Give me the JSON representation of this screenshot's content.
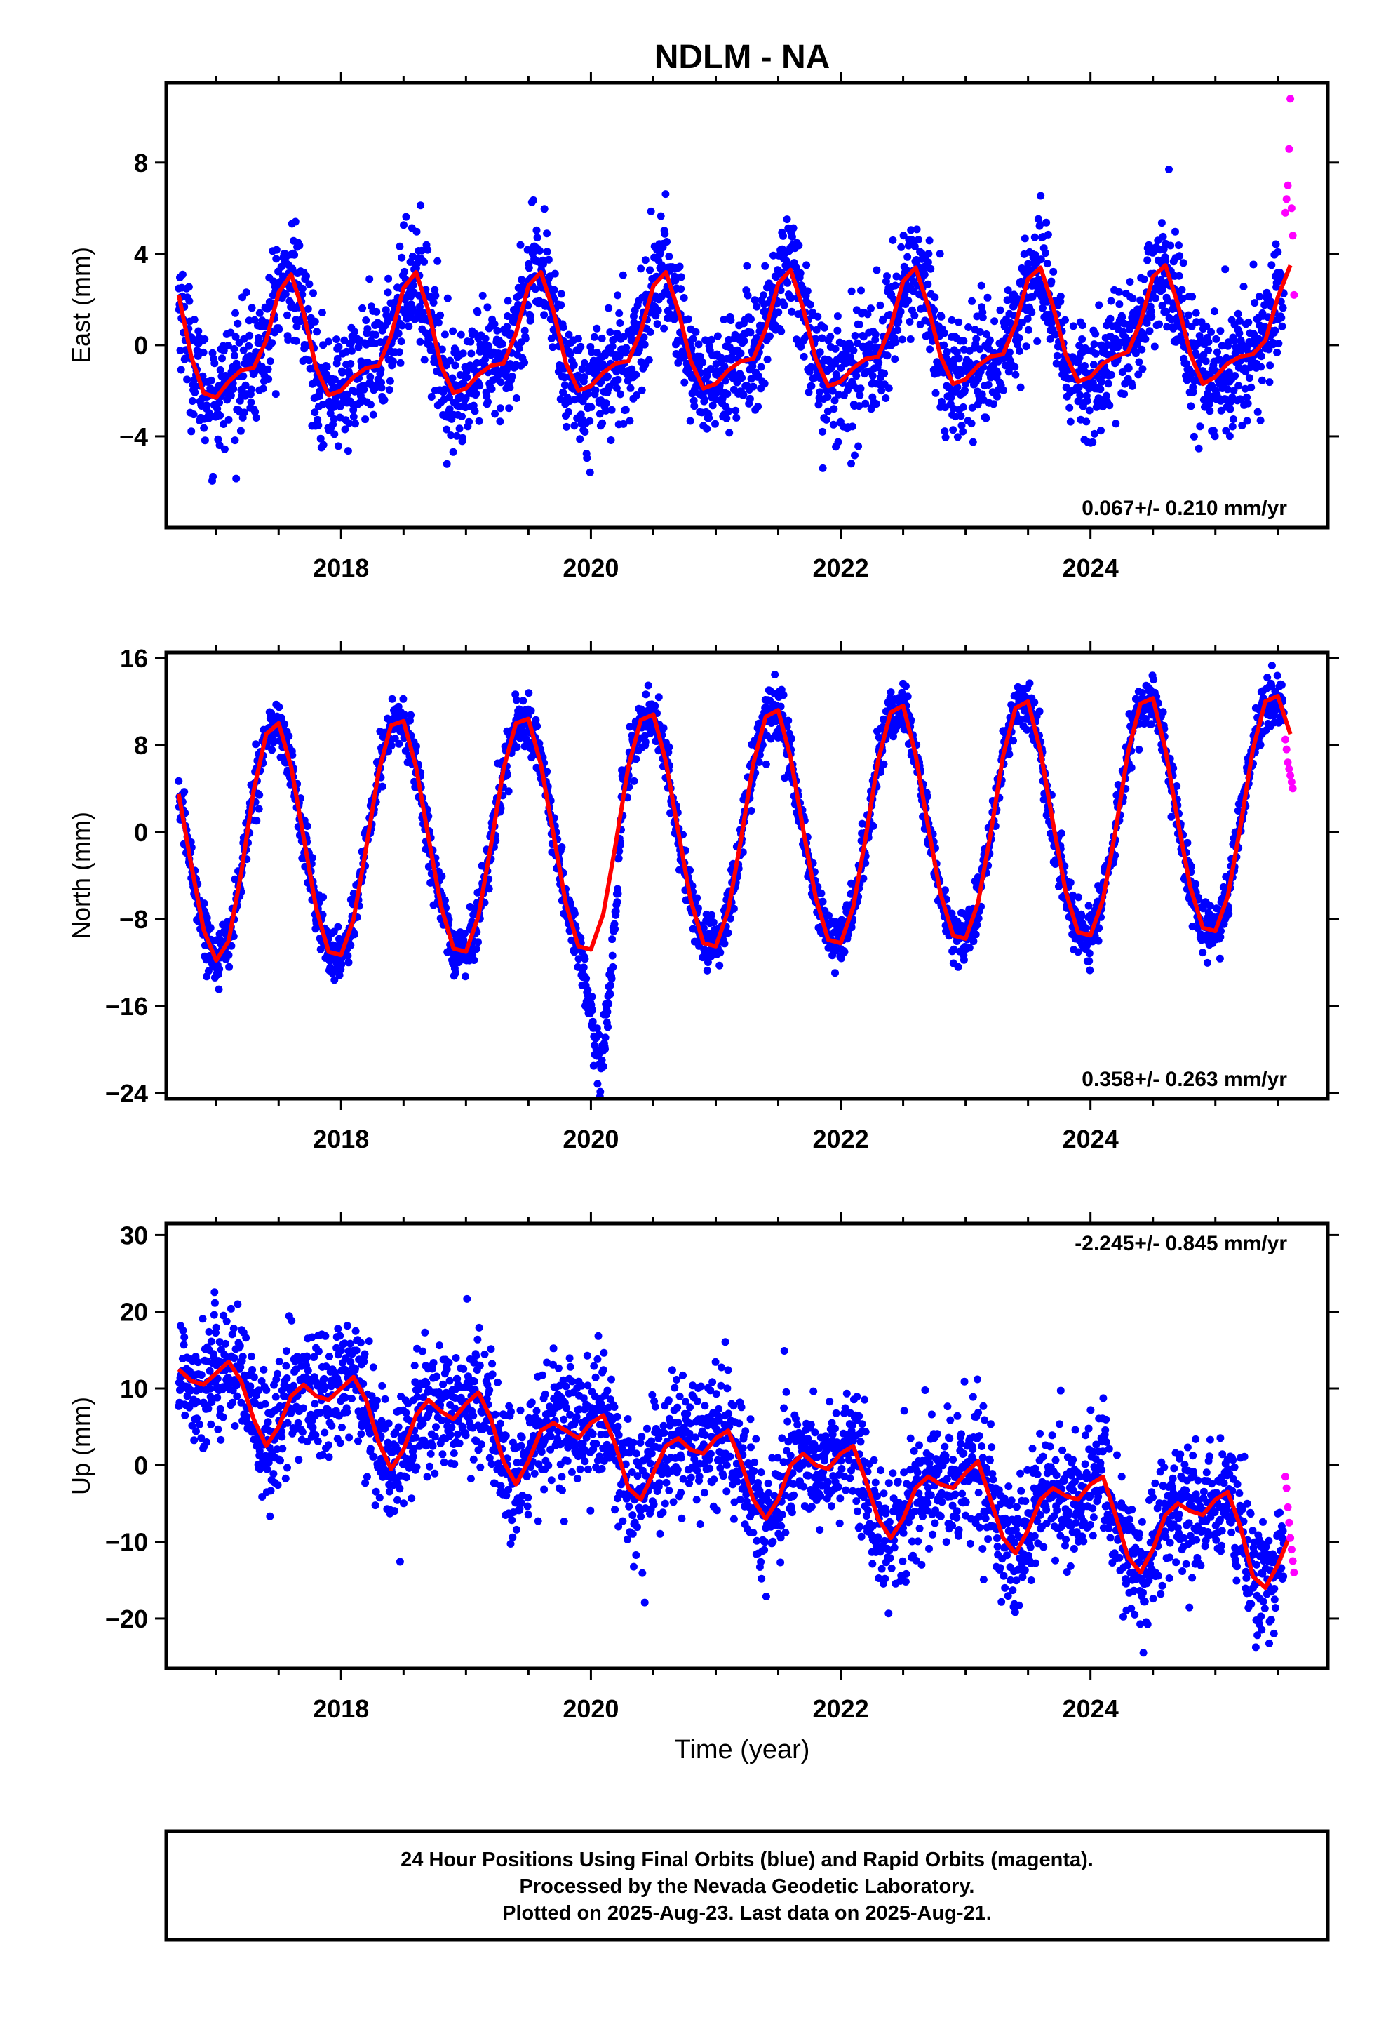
{
  "title": "NDLM - NA",
  "colors": {
    "final": "#0000ff",
    "rapid": "#ff00ff",
    "model": "#ff0000"
  },
  "chart_data": [
    {
      "type": "scatter",
      "ylabel": "East (mm)",
      "xlim": [
        2016.6,
        2025.9
      ],
      "ylim": [
        -8,
        11.5
      ],
      "yticks": [
        -4,
        0,
        4,
        8
      ],
      "xticks": [
        2018,
        2020,
        2022,
        2024
      ],
      "rate": "0.067+/- 0.210 mm/yr",
      "rate_position": "bottom-right",
      "series": [
        {
          "name": "Final Orbits",
          "color": "#0000ff",
          "x_range": [
            2016.7,
            2025.55
          ],
          "mean": 0.0,
          "trend_mm_per_yr": 0.067,
          "annual_amplitude": 2.6,
          "annual_peak": 0.58,
          "semiannual_amplitude": 0.5,
          "scatter_sd": 1.3
        },
        {
          "name": "Rapid Orbits",
          "color": "#ff00ff",
          "x": [
            2025.56,
            2025.57,
            2025.58,
            2025.59,
            2025.6,
            2025.61,
            2025.62,
            2025.63
          ],
          "y": [
            5.8,
            6.4,
            7.0,
            8.6,
            10.8,
            6.0,
            4.8,
            2.2
          ]
        },
        {
          "name": "Model",
          "color": "#ff0000",
          "x": [
            2016.7,
            2016.8,
            2016.9,
            2017.0,
            2017.1,
            2017.2,
            2017.3,
            2017.4,
            2017.5,
            2017.6,
            2017.7,
            2017.8,
            2017.9,
            2018.0,
            2018.1,
            2018.2,
            2018.3,
            2018.4,
            2018.5,
            2018.6,
            2018.7,
            2018.8,
            2018.9,
            2019.0,
            2019.1,
            2019.2,
            2019.3,
            2019.4,
            2019.5,
            2019.6,
            2019.7,
            2019.8,
            2019.9,
            2020.0,
            2020.1,
            2020.2,
            2020.3,
            2020.4,
            2020.5,
            2020.6,
            2020.7,
            2020.8,
            2020.9,
            2021.0,
            2021.1,
            2021.2,
            2021.3,
            2021.4,
            2021.5,
            2021.6,
            2021.7,
            2021.8,
            2021.9,
            2022.0,
            2022.1,
            2022.2,
            2022.3,
            2022.4,
            2022.5,
            2022.6,
            2022.7,
            2022.8,
            2022.9,
            2023.0,
            2023.1,
            2023.2,
            2023.3,
            2023.4,
            2023.5,
            2023.6,
            2023.7,
            2023.8,
            2023.9,
            2024.0,
            2024.1,
            2024.2,
            2024.3,
            2024.4,
            2024.5,
            2024.6,
            2024.7,
            2024.8,
            2024.9,
            2025.0,
            2025.1,
            2025.2,
            2025.3,
            2025.4,
            2025.5,
            2025.6
          ],
          "y": [
            2.2,
            -0.5,
            -2.1,
            -2.3,
            -1.6,
            -1.1,
            -1.0,
            0.2,
            2.3,
            3.1,
            1.4,
            -1.0,
            -2.2,
            -2.0,
            -1.4,
            -1.0,
            -0.9,
            0.4,
            2.5,
            3.2,
            1.5,
            -0.9,
            -2.1,
            -1.9,
            -1.3,
            -0.9,
            -0.8,
            0.5,
            2.6,
            3.2,
            1.5,
            -0.8,
            -2.0,
            -1.8,
            -1.2,
            -0.8,
            -0.7,
            0.6,
            2.6,
            3.2,
            1.5,
            -0.7,
            -1.9,
            -1.7,
            -1.1,
            -0.7,
            -0.6,
            0.7,
            2.7,
            3.3,
            1.6,
            -0.6,
            -1.8,
            -1.6,
            -1.0,
            -0.6,
            -0.5,
            0.8,
            2.8,
            3.4,
            1.7,
            -0.5,
            -1.7,
            -1.5,
            -0.9,
            -0.5,
            -0.4,
            0.9,
            2.9,
            3.4,
            1.7,
            -0.4,
            -1.6,
            -1.4,
            -0.8,
            -0.5,
            -0.3,
            1.0,
            3.0,
            3.5,
            1.8,
            -0.4,
            -1.7,
            -1.4,
            -0.8,
            -0.5,
            -0.4,
            0.2,
            2.1,
            3.5
          ]
        }
      ]
    },
    {
      "type": "scatter",
      "ylabel": "North (mm)",
      "xlim": [
        2016.6,
        2025.9
      ],
      "ylim": [
        -24.5,
        16.5
      ],
      "yticks": [
        -24,
        -16,
        -8,
        0,
        8,
        16
      ],
      "xticks": [
        2018,
        2020,
        2022,
        2024
      ],
      "rate": "0.358+/- 0.263 mm/yr",
      "rate_position": "bottom-right",
      "series": [
        {
          "name": "Final Orbits",
          "color": "#0000ff",
          "x_range": [
            2016.7,
            2025.55
          ],
          "mean": 0.0,
          "trend_mm_per_yr": 0.358,
          "annual_amplitude": 11.0,
          "annual_peak": 0.52,
          "semiannual_amplitude": 0.0,
          "scatter_sd": 1.2,
          "anomaly": {
            "x": [
              2019.9,
              2020.25
            ],
            "min": -24
          }
        },
        {
          "name": "Rapid Orbits",
          "color": "#ff00ff",
          "x": [
            2025.56,
            2025.57,
            2025.58,
            2025.59,
            2025.6,
            2025.61,
            2025.62
          ],
          "y": [
            8.5,
            7.6,
            6.4,
            5.8,
            5.2,
            4.6,
            4.0
          ]
        },
        {
          "name": "Model",
          "color": "#ff0000",
          "x": [
            2016.7,
            2016.8,
            2016.9,
            2017.0,
            2017.1,
            2017.2,
            2017.3,
            2017.4,
            2017.5,
            2017.6,
            2017.7,
            2017.8,
            2017.9,
            2018.0,
            2018.1,
            2018.2,
            2018.3,
            2018.4,
            2018.5,
            2018.6,
            2018.7,
            2018.8,
            2018.9,
            2019.0,
            2019.1,
            2019.2,
            2019.3,
            2019.4,
            2019.5,
            2019.6,
            2019.7,
            2019.8,
            2019.9,
            2020.0,
            2020.1,
            2020.2,
            2020.3,
            2020.4,
            2020.5,
            2020.6,
            2020.7,
            2020.8,
            2020.9,
            2021.0,
            2021.1,
            2021.2,
            2021.3,
            2021.4,
            2021.5,
            2021.6,
            2021.7,
            2021.8,
            2021.9,
            2022.0,
            2022.1,
            2022.2,
            2022.3,
            2022.4,
            2022.5,
            2022.6,
            2022.7,
            2022.8,
            2022.9,
            2023.0,
            2023.1,
            2023.2,
            2023.3,
            2023.4,
            2023.5,
            2023.6,
            2023.7,
            2023.8,
            2023.9,
            2024.0,
            2024.1,
            2024.2,
            2024.3,
            2024.4,
            2024.5,
            2024.6,
            2024.7,
            2024.8,
            2024.9,
            2025.0,
            2025.1,
            2025.2,
            2025.3,
            2025.4,
            2025.5,
            2025.6
          ],
          "y": [
            3.5,
            -3.0,
            -9.0,
            -11.8,
            -10.0,
            -3.8,
            3.8,
            9.0,
            10.0,
            6.0,
            -0.5,
            -7.0,
            -11.0,
            -11.3,
            -8.0,
            -1.5,
            5.5,
            9.8,
            10.2,
            6.0,
            -0.5,
            -6.8,
            -10.7,
            -11.0,
            -7.7,
            -1.2,
            5.8,
            10.0,
            10.4,
            6.2,
            -0.2,
            -6.6,
            -10.5,
            -10.8,
            -7.5,
            -1.0,
            6.0,
            10.3,
            10.8,
            6.5,
            0.0,
            -6.3,
            -10.2,
            -10.5,
            -7.2,
            -0.8,
            6.3,
            10.6,
            11.2,
            6.8,
            0.2,
            -6.0,
            -9.9,
            -10.2,
            -6.9,
            -0.5,
            6.6,
            11.0,
            11.6,
            7.1,
            0.5,
            -5.7,
            -9.5,
            -9.8,
            -6.5,
            -0.2,
            7.0,
            11.4,
            12.0,
            7.4,
            0.8,
            -5.4,
            -9.2,
            -9.5,
            -6.2,
            0.1,
            7.3,
            11.8,
            12.3,
            7.6,
            1.0,
            -5.1,
            -8.8,
            -9.1,
            -5.9,
            0.5,
            7.6,
            12.0,
            12.5,
            9.0
          ]
        }
      ]
    },
    {
      "type": "scatter",
      "ylabel": "Up (mm)",
      "xlabel": "Time (year)",
      "xlim": [
        2016.6,
        2025.9
      ],
      "ylim": [
        -26.5,
        31.5
      ],
      "yticks": [
        -20,
        -10,
        0,
        10,
        20,
        30
      ],
      "xticks": [
        2018,
        2020,
        2022,
        2024
      ],
      "rate": "-2.245+/- 0.845 mm/yr",
      "rate_position": "top-right",
      "series": [
        {
          "name": "Final Orbits",
          "color": "#0000ff",
          "x_range": [
            2016.7,
            2025.55
          ],
          "mean": 0.0,
          "trend_mm_per_yr": -2.245,
          "annual_amplitude": 3.5,
          "annual_peak": 0.05,
          "semiannual_amplitude": 2.0,
          "scatter_sd": 4.2,
          "intercept": 12.0
        },
        {
          "name": "Rapid Orbits",
          "color": "#ff00ff",
          "x": [
            2025.56,
            2025.57,
            2025.58,
            2025.59,
            2025.6,
            2025.61,
            2025.62,
            2025.63
          ],
          "y": [
            -1.5,
            -3.0,
            -5.5,
            -7.5,
            -9.5,
            -11.0,
            -12.5,
            -14.0
          ]
        },
        {
          "name": "Model",
          "color": "#ff0000",
          "x": [
            2016.7,
            2016.8,
            2016.9,
            2017.0,
            2017.1,
            2017.2,
            2017.3,
            2017.4,
            2017.5,
            2017.6,
            2017.7,
            2017.8,
            2017.9,
            2018.0,
            2018.1,
            2018.2,
            2018.3,
            2018.4,
            2018.5,
            2018.6,
            2018.7,
            2018.8,
            2018.9,
            2019.0,
            2019.1,
            2019.2,
            2019.3,
            2019.4,
            2019.5,
            2019.6,
            2019.7,
            2019.8,
            2019.9,
            2020.0,
            2020.1,
            2020.2,
            2020.3,
            2020.4,
            2020.5,
            2020.6,
            2020.7,
            2020.8,
            2020.9,
            2021.0,
            2021.1,
            2021.2,
            2021.3,
            2021.4,
            2021.5,
            2021.6,
            2021.7,
            2021.8,
            2021.9,
            2022.0,
            2022.1,
            2022.2,
            2022.3,
            2022.4,
            2022.5,
            2022.6,
            2022.7,
            2022.8,
            2022.9,
            2023.0,
            2023.1,
            2023.2,
            2023.3,
            2023.4,
            2023.5,
            2023.6,
            2023.7,
            2023.8,
            2023.9,
            2024.0,
            2024.1,
            2024.2,
            2024.3,
            2024.4,
            2024.5,
            2024.6,
            2024.7,
            2024.8,
            2024.9,
            2025.0,
            2025.1,
            2025.2,
            2025.3,
            2025.4,
            2025.5,
            2025.6
          ],
          "y": [
            12.5,
            11.0,
            10.5,
            12.0,
            13.5,
            11.0,
            6.0,
            2.5,
            5.0,
            9.0,
            10.5,
            9.0,
            8.5,
            10.0,
            11.5,
            8.5,
            3.0,
            -0.5,
            2.0,
            6.5,
            8.5,
            7.0,
            6.0,
            8.0,
            9.5,
            6.0,
            0.5,
            -2.5,
            0.5,
            4.5,
            5.5,
            4.5,
            3.5,
            5.5,
            6.5,
            2.5,
            -3.0,
            -4.5,
            -1.0,
            2.5,
            3.5,
            2.0,
            1.5,
            3.5,
            4.5,
            0.5,
            -4.5,
            -7.0,
            -4.5,
            0.0,
            1.5,
            0.0,
            -0.5,
            1.5,
            2.5,
            -2.0,
            -7.0,
            -9.5,
            -7.0,
            -3.0,
            -1.5,
            -2.5,
            -3.0,
            -1.0,
            0.5,
            -4.5,
            -9.5,
            -11.5,
            -8.5,
            -4.5,
            -3.0,
            -4.0,
            -4.5,
            -2.5,
            -1.5,
            -6.5,
            -12.0,
            -14.0,
            -11.0,
            -6.5,
            -5.0,
            -6.0,
            -6.5,
            -4.5,
            -3.5,
            -8.0,
            -14.5,
            -16.0,
            -13.0,
            -9.0
          ]
        }
      ]
    }
  ],
  "footer": {
    "line1": "24 Hour Positions Using Final Orbits (blue) and Rapid Orbits (magenta).",
    "line2": "Processed by the Nevada Geodetic Laboratory.",
    "line3": "Plotted on 2025-Aug-23. Last data on 2025-Aug-21."
  }
}
